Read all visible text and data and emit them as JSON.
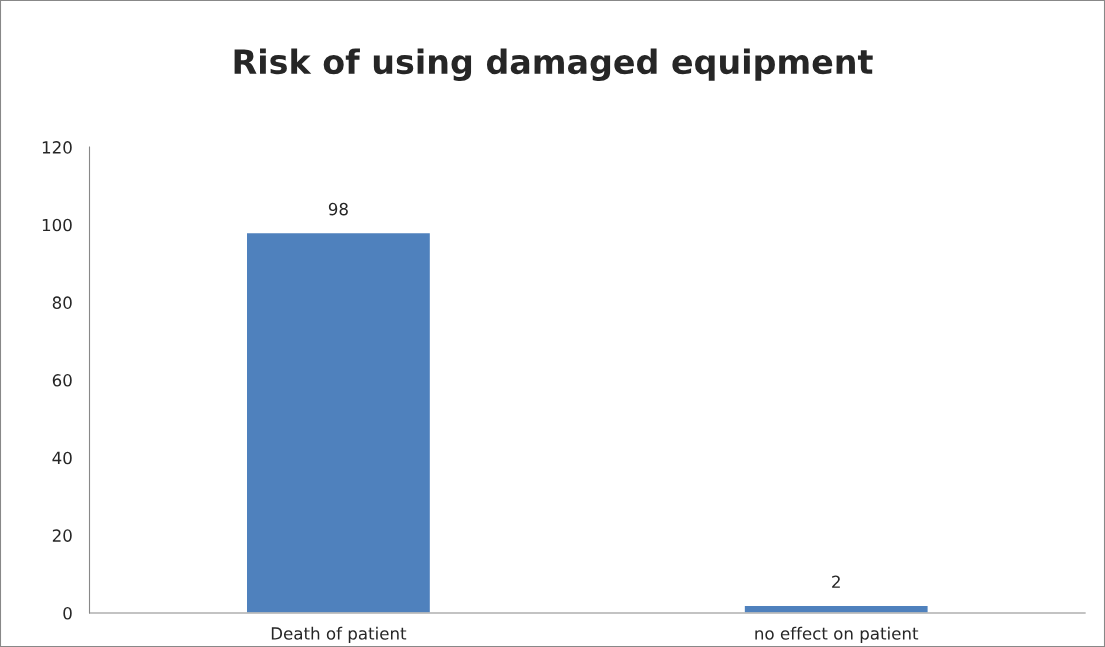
{
  "chart_data": {
    "type": "bar",
    "title": "Risk of using damaged equipment",
    "categories": [
      "Death of patient",
      "no effect on patient"
    ],
    "values": [
      98,
      2
    ],
    "color": "#4f81bd",
    "ylim": [
      0,
      120
    ],
    "yticks": [
      0,
      20,
      40,
      60,
      80,
      100,
      120
    ],
    "data_labels": true,
    "grid": false,
    "legend": false
  }
}
